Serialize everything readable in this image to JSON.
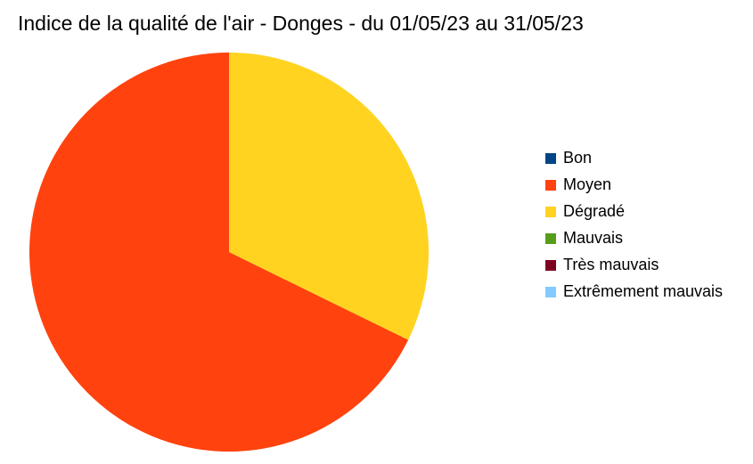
{
  "chart_data": {
    "type": "pie",
    "title": "Indice de la qualité de l'air - Donges - du 01/05/23 au 31/05/23",
    "categories": [
      "Bon",
      "Moyen",
      "Dégradé",
      "Mauvais",
      "Très mauvais",
      "Extrêmement mauvais"
    ],
    "values": [
      0,
      21,
      10,
      0,
      0,
      0
    ],
    "colors": [
      "#004586",
      "#ff420e",
      "#ffd320",
      "#579d1c",
      "#7e0021",
      "#83caff"
    ],
    "legend": "right"
  }
}
